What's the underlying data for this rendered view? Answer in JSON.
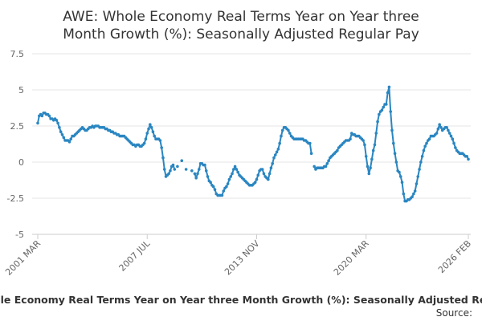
{
  "chart_data": {
    "type": "line",
    "title": [
      "AWE: Whole Economy Real Terms Year on Year three",
      "Month Growth (%): Seasonally Adjusted Regular Pay"
    ],
    "x_label": "AWE: Whole Economy Real Terms Year on Year three Month Growth (%): Seasonally Adjusted Regular Pay",
    "source": "Source:",
    "ylim": [
      -5,
      7.5
    ],
    "yticks": [
      -5,
      -2.5,
      0,
      2.5,
      5,
      7.5
    ],
    "grid": true,
    "categories": [
      "2001 MAR",
      null,
      null,
      null,
      null,
      null,
      null,
      null,
      null,
      null,
      null,
      null,
      null,
      null,
      null,
      null,
      null,
      null,
      null,
      null,
      null,
      null,
      null,
      null,
      null,
      null,
      null,
      null,
      null,
      null,
      null,
      null,
      null,
      null,
      null,
      null,
      null,
      null,
      null,
      null,
      null,
      null,
      null,
      null,
      null,
      null,
      null,
      null,
      null,
      null,
      null,
      null,
      null,
      null,
      null,
      null,
      null,
      null,
      null,
      null,
      null,
      null,
      null,
      null,
      null,
      null,
      null,
      null,
      null,
      null,
      null,
      null,
      null,
      null,
      null,
      null,
      "2007 JUL",
      null,
      null,
      null,
      null,
      null,
      null,
      null,
      null,
      null,
      null,
      null,
      null,
      null,
      null,
      null,
      null,
      null,
      null,
      null,
      null,
      null,
      null,
      null,
      null,
      null,
      null,
      null,
      null,
      null,
      null,
      null,
      null,
      null,
      null,
      null,
      null,
      null,
      null,
      null,
      null,
      null,
      null,
      null,
      null,
      null,
      null,
      null,
      null,
      null,
      null,
      null,
      null,
      null,
      null,
      null,
      null,
      null,
      null,
      null,
      null,
      null,
      null,
      null,
      null,
      null,
      null,
      null,
      null,
      null,
      null,
      null,
      null,
      null,
      null,
      null,
      "2013 NOV",
      null,
      null,
      null,
      null,
      null,
      null,
      null,
      null,
      null,
      null,
      null,
      null,
      null,
      null,
      null,
      null,
      null,
      null,
      null,
      null,
      null,
      null,
      null,
      null,
      null,
      null,
      null,
      null,
      null,
      null,
      null,
      null,
      null,
      null,
      null,
      null,
      null,
      null,
      null,
      null,
      null,
      null,
      null,
      null,
      null,
      null,
      null,
      null,
      null,
      null,
      null,
      null,
      null,
      null,
      null,
      null,
      null,
      null,
      null,
      null,
      null,
      null,
      null,
      null,
      null,
      null,
      null,
      null,
      null,
      null,
      null,
      null,
      null,
      null,
      null,
      "2020 MAR",
      null,
      null,
      null,
      null,
      null,
      null,
      null,
      null,
      null,
      null,
      null,
      null,
      null,
      null,
      null,
      null,
      null,
      null,
      null,
      null,
      null,
      null,
      null,
      null,
      null,
      null,
      null,
      null,
      null,
      null,
      null,
      null,
      null,
      null,
      null,
      null,
      null,
      null,
      null,
      null,
      null,
      null,
      null,
      null,
      null,
      null,
      null,
      null,
      null,
      null,
      null,
      null,
      null,
      null,
      null,
      null,
      null,
      null,
      null,
      null,
      null,
      null,
      null,
      null,
      null,
      null,
      null,
      null,
      null,
      null,
      "2026 FEB"
    ],
    "series": [
      {
        "color": "#2a86c1",
        "values": [
          2.7,
          3.2,
          3.3,
          3.2,
          3.4,
          3.4,
          3.3,
          3.3,
          3.2,
          3.0,
          3.0,
          2.9,
          3.0,
          2.9,
          2.7,
          2.4,
          2.1,
          1.9,
          1.7,
          1.5,
          1.5,
          1.5,
          1.4,
          1.6,
          1.8,
          1.8,
          1.9,
          2.0,
          2.1,
          2.2,
          2.3,
          2.4,
          2.3,
          2.2,
          2.2,
          2.3,
          2.4,
          2.4,
          2.5,
          2.4,
          2.5,
          2.5,
          2.5,
          2.4,
          2.4,
          2.4,
          2.4,
          2.3,
          2.3,
          2.2,
          2.2,
          2.1,
          2.1,
          2.0,
          2.0,
          1.9,
          1.9,
          1.8,
          1.8,
          1.8,
          1.8,
          1.7,
          1.6,
          1.5,
          1.4,
          1.3,
          1.2,
          1.2,
          1.1,
          1.2,
          1.2,
          1.1,
          1.1,
          1.2,
          1.3,
          1.6,
          2.0,
          2.3,
          2.6,
          2.4,
          2.1,
          1.8,
          1.6,
          1.6,
          1.6,
          1.5,
          1.0,
          0.3,
          -0.5,
          -1.0,
          -0.9,
          -0.8,
          -0.6,
          -0.3,
          -0.2,
          -0.5,
          null,
          -0.3,
          null,
          null,
          0.1,
          null,
          null,
          -0.5,
          null,
          null,
          null,
          -0.6,
          null,
          -0.8,
          -1.1,
          -0.8,
          -0.5,
          -0.1,
          -0.1,
          -0.2,
          -0.2,
          -0.6,
          -1.0,
          -1.3,
          -1.4,
          -1.6,
          -1.7,
          -1.9,
          -2.2,
          -2.3,
          -2.3,
          -2.3,
          -2.3,
          -2.0,
          -1.8,
          -1.7,
          -1.5,
          -1.2,
          -1.0,
          -0.8,
          -0.5,
          -0.3,
          -0.5,
          -0.7,
          -0.9,
          -1.0,
          -1.1,
          -1.2,
          -1.3,
          -1.4,
          -1.5,
          -1.6,
          -1.6,
          -1.6,
          -1.5,
          -1.4,
          -1.2,
          -0.9,
          -0.6,
          -0.5,
          -0.5,
          -0.8,
          -1.0,
          -1.1,
          -1.2,
          -0.8,
          -0.4,
          -0.1,
          0.3,
          0.5,
          0.7,
          0.9,
          1.3,
          1.8,
          2.2,
          2.4,
          2.4,
          2.3,
          2.2,
          2.0,
          1.8,
          1.7,
          1.6,
          1.6,
          1.6,
          1.6,
          1.6,
          1.6,
          1.6,
          1.5,
          1.5,
          1.4,
          1.3,
          1.3,
          0.6,
          null,
          -0.3,
          -0.5,
          -0.4,
          -0.4,
          -0.4,
          -0.4,
          -0.4,
          -0.3,
          -0.3,
          -0.1,
          0.1,
          0.3,
          0.4,
          0.5,
          0.6,
          0.7,
          0.8,
          1.0,
          1.1,
          1.2,
          1.3,
          1.4,
          1.5,
          1.5,
          1.5,
          1.6,
          2.0,
          1.9,
          1.9,
          1.8,
          1.8,
          1.8,
          1.7,
          1.6,
          1.5,
          1.2,
          0.4,
          -0.3,
          -0.8,
          -0.4,
          0.2,
          0.8,
          1.2,
          2.0,
          2.8,
          3.3,
          3.5,
          3.6,
          3.8,
          4.0,
          4.0,
          4.8,
          5.2,
          3.5,
          2.2,
          1.3,
          0.6,
          0.0,
          -0.6,
          -0.7,
          -1.0,
          -1.4,
          -2.2,
          -2.7,
          -2.7,
          -2.6,
          -2.6,
          -2.5,
          -2.4,
          -2.2,
          -2.0,
          -1.5,
          -1.0,
          -0.5,
          0.0,
          0.4,
          0.8,
          1.1,
          1.3,
          1.5,
          1.6,
          1.8,
          1.8,
          1.8,
          1.9,
          2.0,
          2.3,
          2.6,
          2.4,
          2.2,
          2.3,
          2.4,
          2.4,
          2.2,
          2.0,
          1.8,
          1.6,
          1.3,
          1.0,
          0.8,
          0.7,
          0.6,
          0.6,
          0.6,
          0.5,
          0.4,
          0.4,
          0.2
        ]
      }
    ]
  }
}
